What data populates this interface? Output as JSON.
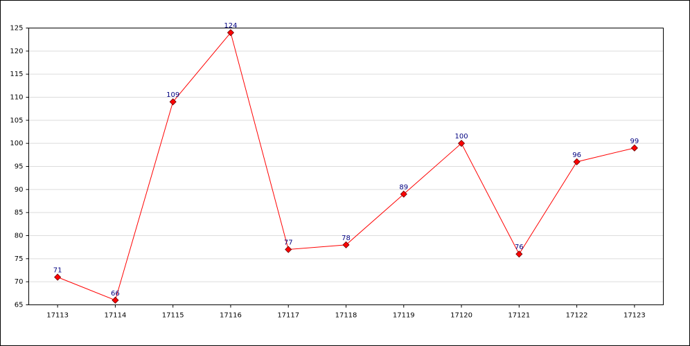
{
  "chart_data": {
    "type": "line",
    "categories": [
      "17113",
      "17114",
      "17115",
      "17116",
      "17117",
      "17118",
      "17119",
      "17120",
      "17121",
      "17122",
      "17123"
    ],
    "values": [
      71,
      66,
      109,
      124,
      77,
      78,
      89,
      100,
      76,
      96,
      99
    ],
    "color": "#ff0000",
    "marker_color": "#ff0000",
    "value_label_color": "#000080",
    "ylim": [
      65,
      125
    ],
    "yticks": [
      65,
      70,
      75,
      80,
      85,
      90,
      95,
      100,
      105,
      110,
      115,
      120,
      125
    ],
    "grid": true
  }
}
